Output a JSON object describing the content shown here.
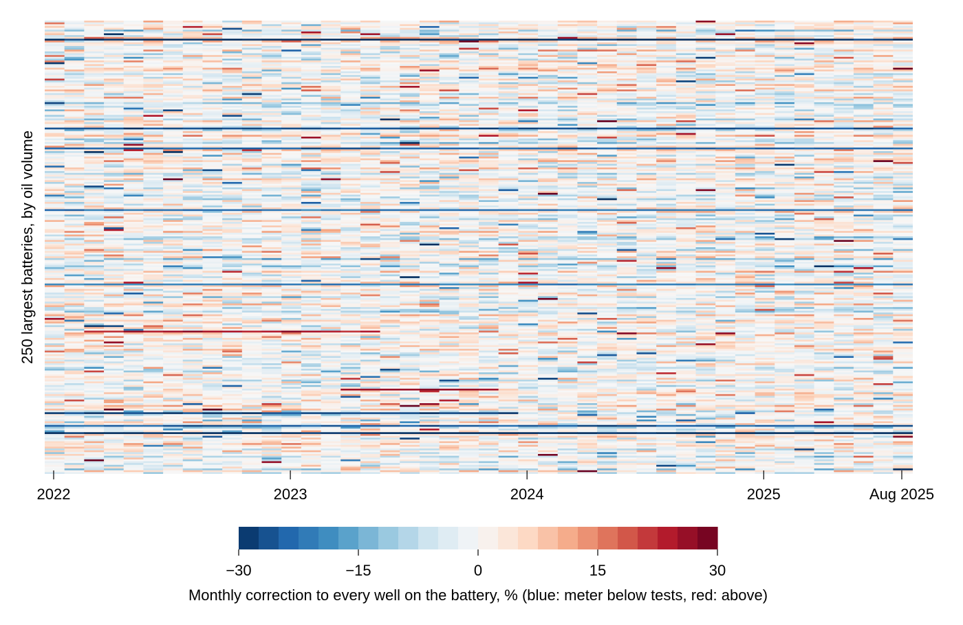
{
  "chart_data": {
    "type": "heatmap",
    "title": "",
    "xlabel": "",
    "ylabel": "250 largest batteries, by oil volume",
    "x_range": [
      "2022-01",
      "2025-08"
    ],
    "x_months": 44,
    "row_count": 250,
    "x_ticks": [
      {
        "month_index": 0,
        "label": "2022"
      },
      {
        "month_index": 12,
        "label": "2023"
      },
      {
        "month_index": 24,
        "label": "2024"
      },
      {
        "month_index": 36,
        "label": "2025"
      },
      {
        "month_index": 43,
        "label": "Aug 2025"
      }
    ],
    "colorbar": {
      "label": "Monthly correction to every well on the battery, %  (blue: meter below tests, red: above)",
      "range": [
        -30,
        30
      ],
      "ticks": [
        {
          "value": -30,
          "label": "−30"
        },
        {
          "value": -15,
          "label": "−15"
        },
        {
          "value": 0,
          "label": "0"
        },
        {
          "value": 15,
          "label": "15"
        },
        {
          "value": 30,
          "label": "30"
        }
      ],
      "colormap": "RdBu_r",
      "colors": [
        "#053061",
        "#2166ac",
        "#4393c3",
        "#92c5de",
        "#d1e5f0",
        "#f7f7f7",
        "#fddbc7",
        "#f4a582",
        "#d6604d",
        "#b2182b",
        "#67001f"
      ]
    },
    "value_note": "Individual cell values are not labeled; cells show sparse monthly corrections mostly within ±10%, with a few persistent strongly negative rows and scattered strongly positive rows.",
    "highlighted_rows": [
      {
        "row": 10,
        "start_month": 0,
        "end_month": 43,
        "value": -30
      },
      {
        "row": 59,
        "start_month": 0,
        "end_month": 43,
        "value": -26
      },
      {
        "row": 70,
        "start_month": 0,
        "end_month": 43,
        "value": -24
      },
      {
        "row": 104,
        "start_month": 0,
        "end_month": 43,
        "value": -22
      },
      {
        "row": 145,
        "start_month": 0,
        "end_month": 43,
        "value": -20
      },
      {
        "row": 216,
        "start_month": 0,
        "end_month": 23,
        "value": -28
      },
      {
        "row": 223,
        "start_month": 0,
        "end_month": 43,
        "value": -25
      },
      {
        "row": 227,
        "start_month": 0,
        "end_month": 43,
        "value": -30
      },
      {
        "row": 171,
        "start_month": 2,
        "end_month": 16,
        "value": 24
      },
      {
        "row": 203,
        "start_month": 15,
        "end_month": 22,
        "value": 26
      }
    ]
  }
}
